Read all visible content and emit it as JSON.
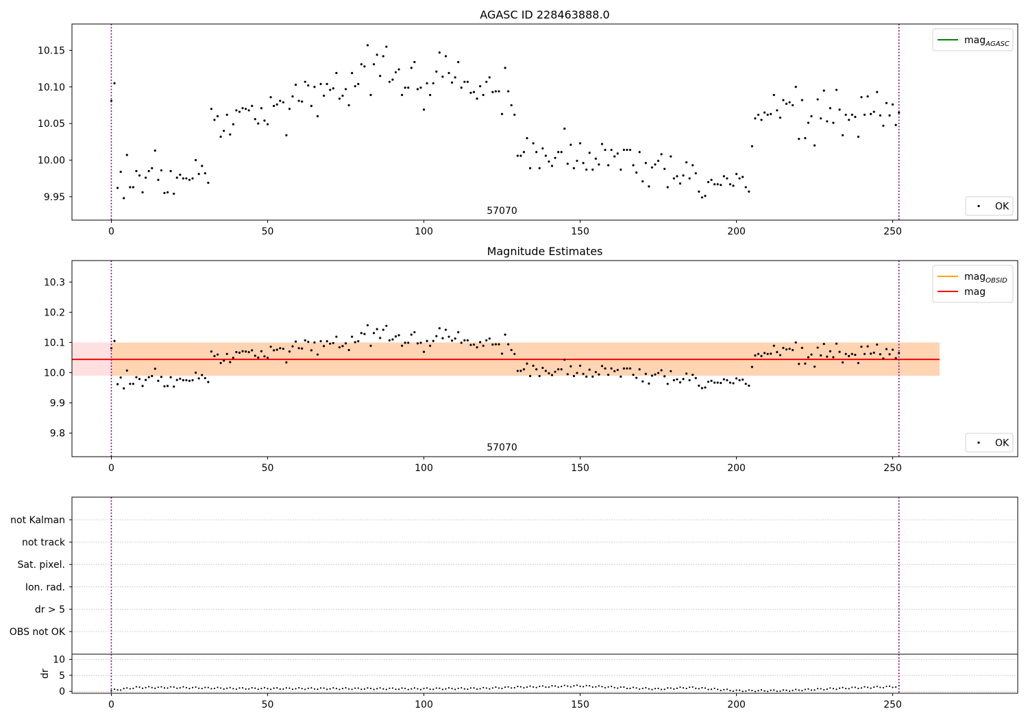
{
  "chart_data": [
    {
      "type": "scatter",
      "title": "AGASC ID 228463888.0",
      "xlim": [
        -12.6,
        290
      ],
      "ylim": [
        9.918,
        10.186
      ],
      "xticks": [
        0,
        50,
        100,
        150,
        200,
        250
      ],
      "yticks": [
        9.95,
        10.0,
        10.05,
        10.1,
        10.15
      ],
      "ytick_labels": [
        "9.95",
        "10.00",
        "10.05",
        "10.10",
        "10.15"
      ],
      "obsid_label": "57070",
      "vlines": [
        0,
        252
      ],
      "legend_upper": [
        {
          "label": "mag",
          "sub": "AGASC",
          "color": "#008000"
        }
      ],
      "legend_lower": [
        {
          "label": "OK"
        }
      ],
      "series": [
        {
          "name": "OK",
          "y": [
            10.081,
            10.105,
            9.962,
            9.984,
            9.948,
            10.007,
            9.963,
            9.963,
            9.985,
            9.979,
            9.956,
            9.976,
            9.985,
            9.989,
            10.013,
            9.973,
            9.986,
            9.955,
            9.956,
            9.985,
            9.954,
            9.976,
            9.98,
            9.975,
            9.975,
            9.973,
            9.975,
            10.0,
            9.981,
            9.992,
            9.982,
            9.969,
            10.07,
            10.055,
            10.06,
            10.032,
            10.04,
            10.062,
            10.035,
            10.049,
            10.068,
            10.066,
            10.071,
            10.07,
            10.068,
            10.074,
            10.056,
            10.05,
            10.071,
            10.054,
            10.049,
            10.086,
            10.074,
            10.076,
            10.081,
            10.079,
            10.034,
            10.07,
            10.087,
            10.103,
            10.081,
            10.08,
            10.107,
            10.102,
            10.074,
            10.1,
            10.06,
            10.104,
            10.088,
            10.104,
            10.096,
            10.098,
            10.119,
            10.084,
            10.088,
            10.097,
            10.075,
            10.119,
            10.101,
            10.104,
            10.131,
            10.128,
            10.157,
            10.089,
            10.131,
            10.144,
            10.115,
            10.142,
            10.155,
            10.107,
            10.11,
            10.12,
            10.124,
            10.089,
            10.099,
            10.099,
            10.126,
            10.134,
            10.097,
            10.099,
            10.069,
            10.105,
            10.089,
            10.105,
            10.121,
            10.147,
            10.114,
            10.142,
            10.119,
            10.106,
            10.113,
            10.134,
            10.099,
            10.107,
            10.107,
            10.092,
            10.093,
            10.084,
            10.101,
            10.089,
            10.107,
            10.113,
            10.093,
            10.094,
            10.094,
            10.063,
            10.126,
            10.094,
            10.075,
            10.062,
            10.006,
            10.006,
            10.011,
            10.03,
            9.989,
            10.023,
            10.011,
            9.989,
            10.016,
            10.006,
            9.998,
            9.992,
            10.003,
            10.011,
            10.011,
            10.043,
            9.995,
            10.021,
            9.989,
            9.999,
            10.023,
            9.996,
            9.987,
            10.01,
            9.987,
            10.002,
            9.994,
            10.022,
            10.014,
            9.993,
            10.014,
            10.005,
            10.009,
            9.987,
            10.014,
            10.014,
            10.014,
            9.993,
            9.983,
            10.011,
            9.971,
            9.996,
            9.964,
            9.99,
            9.994,
            9.999,
            10.008,
            9.988,
            9.963,
            10.005,
            9.975,
            9.978,
            9.968,
            9.979,
            9.997,
            9.975,
            9.993,
            9.982,
            9.957,
            9.949,
            9.951,
            9.97,
            9.973,
            9.967,
            9.967,
            9.966,
            9.978,
            9.975,
            9.967,
            9.965,
            9.981,
            9.975,
            9.977,
            9.963,
            9.957,
            10.019,
            10.057,
            10.062,
            10.055,
            10.065,
            10.062,
            10.063,
            10.089,
            10.068,
            10.058,
            10.082,
            10.077,
            10.079,
            10.075,
            10.1,
            10.029,
            10.082,
            10.03,
            10.051,
            10.06,
            10.02,
            10.083,
            10.057,
            10.095,
            10.053,
            10.071,
            10.051,
            10.096,
            10.069,
            10.034,
            10.062,
            10.055,
            10.062,
            10.059,
            10.032,
            10.086,
            10.062,
            10.087,
            10.063,
            10.066,
            10.093,
            10.061,
            10.047,
            10.078,
            10.061,
            10.076,
            10.048,
            10.065
          ]
        }
      ]
    },
    {
      "type": "scatter",
      "title": "Magnitude Estimates",
      "xlim": [
        -12.6,
        290
      ],
      "ylim": [
        9.722,
        10.371
      ],
      "xticks": [
        0,
        50,
        100,
        150,
        200,
        250
      ],
      "yticks": [
        9.8,
        9.9,
        10.0,
        10.1,
        10.2,
        10.3
      ],
      "ytick_labels": [
        "9.8",
        "9.9",
        "10.0",
        "10.1",
        "10.2",
        "10.3"
      ],
      "obsid_label": "57070",
      "vlines": [
        0,
        252
      ],
      "mag_line": 10.044,
      "mag_band": [
        9.99,
        10.1
      ],
      "obsid_band": [
        9.99,
        10.1
      ],
      "band_x_end": 265,
      "legend_upper": [
        {
          "label": "mag",
          "sub": "OBSID",
          "color": "#ffa500"
        },
        {
          "label": "mag",
          "sub": "",
          "color": "#ff0000"
        }
      ],
      "legend_lower": [
        {
          "label": "OK"
        }
      ],
      "series": [
        {
          "name": "OK",
          "same_as": 0
        }
      ]
    },
    {
      "type": "scatter",
      "title": "",
      "xlim": [
        -12.6,
        290
      ],
      "categories": [
        "not Kalman",
        "not track",
        "Sat. pixel.",
        "Ion. rad.",
        "dr > 5",
        "OBS not OK"
      ],
      "vlines": [
        0,
        252
      ],
      "series": []
    },
    {
      "type": "scatter",
      "title": "",
      "xlim": [
        -12.6,
        290
      ],
      "ylim": [
        -0.6,
        11.6
      ],
      "ylabel": "dr",
      "xticks": [
        0,
        50,
        100,
        150,
        200,
        250
      ],
      "yticks": [
        0,
        5,
        10
      ],
      "ytick_labels": [
        "0",
        "5",
        "10"
      ],
      "vlines": [
        0,
        252
      ],
      "series": [
        {
          "name": "dr",
          "y_shape": [
            [
              0,
              0.3
            ],
            [
              8,
              1.2
            ],
            [
              20,
              1.2
            ],
            [
              40,
              0.9
            ],
            [
              100,
              0.8
            ],
            [
              118,
              0.9
            ],
            [
              130,
              1.3
            ],
            [
              150,
              1.7
            ],
            [
              175,
              0.7
            ],
            [
              185,
              1.2
            ],
            [
              200,
              0.2
            ],
            [
              215,
              0.2
            ],
            [
              235,
              1.0
            ],
            [
              252,
              1.5
            ]
          ]
        }
      ]
    }
  ]
}
